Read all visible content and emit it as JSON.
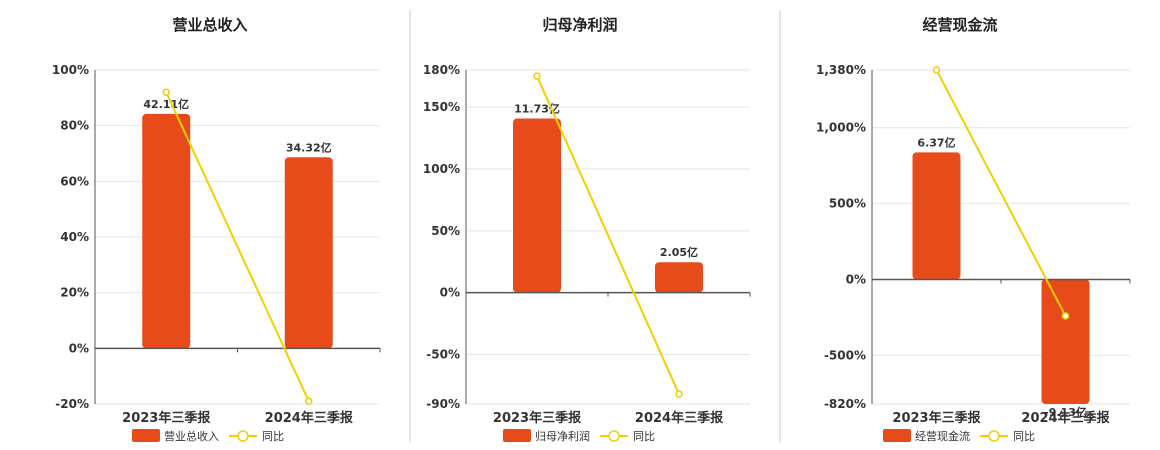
{
  "colors": {
    "bar": "#E84B1A",
    "line": "#F2D000",
    "grid": "#e6e6e6",
    "axis": "#555555",
    "divider": "#c8c8c8"
  },
  "legend_line_label": "同比",
  "chart_data": [
    {
      "type": "bar",
      "title": "营业总收入",
      "categories": [
        "2023年三季报",
        "2024年三季报"
      ],
      "series": [
        {
          "name": "营业总收入",
          "type": "bar",
          "values": [
            42.11,
            34.32
          ],
          "labels": [
            "42.11亿",
            "34.32亿"
          ]
        },
        {
          "name": "同比",
          "type": "line",
          "values": [
            92,
            -19
          ]
        }
      ],
      "yticks": [
        -20,
        0,
        20,
        40,
        60,
        80,
        100
      ],
      "ytick_labels": [
        "-20%",
        "0%",
        "20%",
        "40%",
        "60%",
        "80%",
        "100%"
      ],
      "ylim": [
        -20,
        100
      ],
      "bar_scale_max": 50,
      "grid": true,
      "legend": "bottom"
    },
    {
      "type": "bar",
      "title": "归母净利润",
      "categories": [
        "2023年三季报",
        "2024年三季报"
      ],
      "series": [
        {
          "name": "归母净利润",
          "type": "bar",
          "values": [
            11.73,
            2.05
          ],
          "labels": [
            "11.73亿",
            "2.05亿"
          ]
        },
        {
          "name": "同比",
          "type": "line",
          "values": [
            175,
            -82
          ]
        }
      ],
      "yticks": [
        -90,
        -50,
        0,
        50,
        100,
        150,
        180
      ],
      "ytick_labels": [
        "-90%",
        "-50%",
        "0%",
        "50%",
        "100%",
        "150%",
        "180%"
      ],
      "ylim": [
        -90,
        180
      ],
      "bar_scale_max": 15,
      "grid": true,
      "legend": "bottom"
    },
    {
      "type": "bar",
      "title": "经营现金流",
      "categories": [
        "2023年三季报",
        "2024年三季报"
      ],
      "series": [
        {
          "name": "经营现金流",
          "type": "bar",
          "values": [
            6.37,
            -9.13
          ],
          "labels": [
            "6.37亿",
            "-9.13亿"
          ]
        },
        {
          "name": "同比",
          "type": "line",
          "values": [
            1380,
            -240
          ]
        }
      ],
      "yticks": [
        -820,
        -500,
        0,
        500,
        1000,
        1380
      ],
      "ytick_labels": [
        "-820%",
        "-500%",
        "0%",
        "500%",
        "1,000%",
        "1,380%"
      ],
      "ylim": [
        -820,
        1380
      ],
      "bar_scale_max": 10.5,
      "grid": true,
      "legend": "bottom"
    }
  ]
}
